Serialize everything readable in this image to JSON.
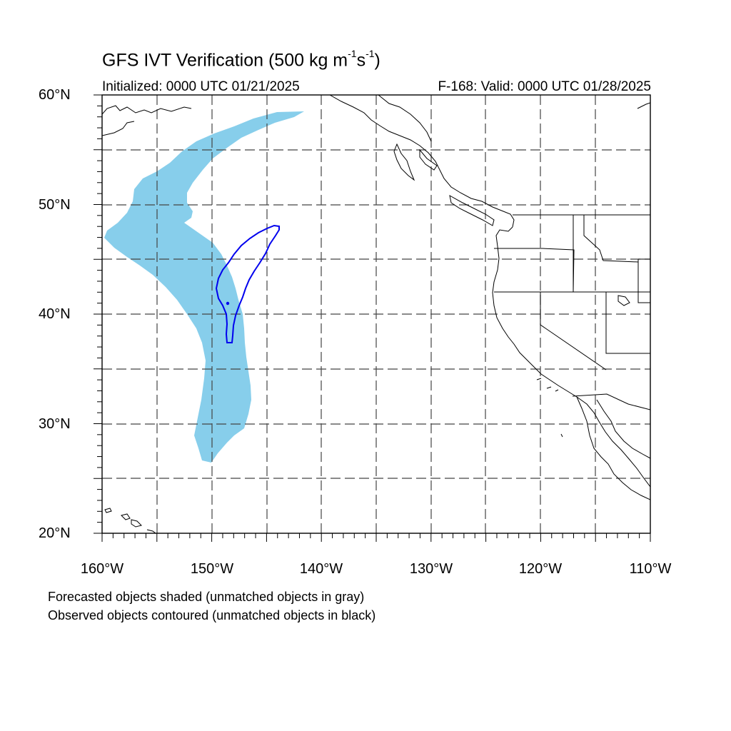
{
  "header": {
    "title_main": "GFS IVT Verification (500 kg m",
    "title_exp1": "-1",
    "title_mid": "s",
    "title_exp2": "-1",
    "title_end": ")",
    "initialized": "Initialized: 0000 UTC 01/21/2025",
    "valid": "F-168: Valid: 0000 UTC 01/28/2025"
  },
  "axes": {
    "lat_labels": [
      "60°N",
      "50°N",
      "40°N",
      "30°N",
      "20°N"
    ],
    "lon_labels": [
      "160°W",
      "150°W",
      "140°W",
      "130°W",
      "120°W",
      "110°W"
    ],
    "lon_range": [
      -160,
      -110
    ],
    "lat_range": [
      20,
      60
    ],
    "grid_interval_deg": 5,
    "grid_style": "dashed"
  },
  "colors": {
    "forecast_fill": "#87ceeb",
    "observed_contour": "#0000ee",
    "coastline": "#000000",
    "grid": "#444444"
  },
  "notes": {
    "line1": "Forecasted objects shaded (unmatched objects in gray)",
    "line2": "Observed objects contoured (unmatched objects in black)"
  }
}
